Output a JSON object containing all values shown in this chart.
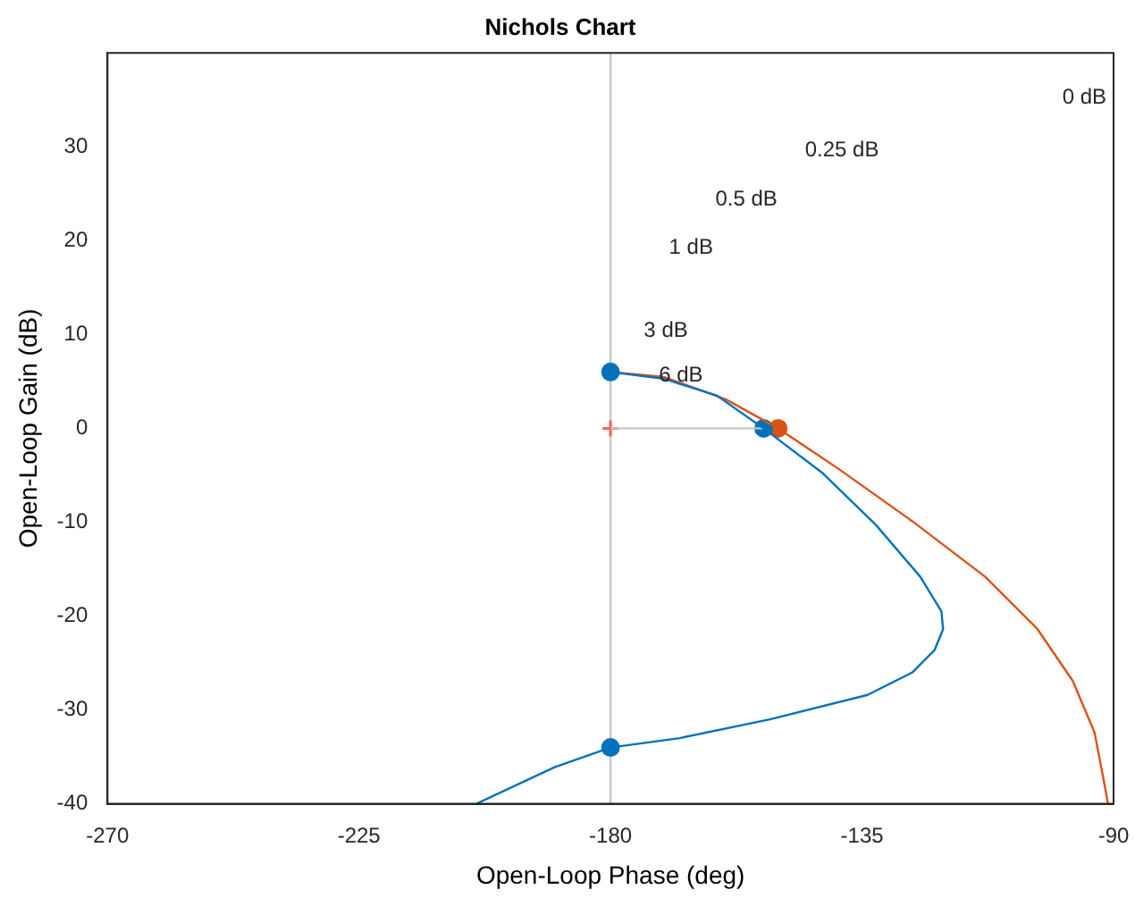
{
  "chart_data": {
    "type": "line",
    "title": "Nichols Chart",
    "xlabel": "Open-Loop Phase (deg)",
    "ylabel": "Open-Loop Gain (dB)",
    "xlim": [
      -270,
      -90
    ],
    "xticks": [
      -270,
      -225,
      -180,
      -135,
      -90
    ],
    "ylim": [
      -40,
      40
    ],
    "yticks": [
      -40,
      -30,
      -20,
      -10,
      0,
      10,
      20,
      30
    ],
    "grid": false,
    "legend": false,
    "line_style": "solid",
    "marker": "none",
    "series": [
      {
        "color": "#0072bd",
        "x": [
          -180,
          -170.6,
          -161,
          -152.6,
          -142,
          -132.5,
          -124.6,
          -120.8,
          -120.5,
          -122,
          -126,
          -134,
          -151.5,
          -167.6,
          -180,
          -190,
          -204
        ],
        "values": [
          6,
          5.3,
          3.5,
          0,
          -4.8,
          -10.3,
          -15.8,
          -19.5,
          -21.4,
          -23.6,
          -26,
          -28.4,
          -31,
          -33,
          -34,
          -36.1,
          -40
        ]
      },
      {
        "color": "#d95319",
        "x": [
          -180,
          -170.6,
          -159.4,
          -150,
          -139,
          -126,
          -113,
          -103.6,
          -97.3,
          -93.4,
          -91.6,
          -91
        ],
        "values": [
          6,
          5.5,
          3.1,
          0,
          -4.4,
          -9.9,
          -15.8,
          -21.4,
          -26.9,
          -32.4,
          -38,
          -40
        ]
      },
      {
        "color": "#c8c8c8",
        "x": [
          -180,
          -152.6
        ],
        "values": [
          0,
          0
        ]
      },
      {
        "type": "scatter",
        "marker": "cross",
        "color": "#ff6060",
        "x": [
          -180
        ],
        "values": [
          0
        ]
      },
      {
        "type": "scatter",
        "marker": "circle",
        "color": "#0072bd",
        "x": [
          -180,
          -152.6,
          -180
        ],
        "values": [
          6,
          0,
          -34
        ]
      },
      {
        "type": "scatter",
        "marker": "circle",
        "color": "#d95319",
        "x": [
          -150
        ],
        "values": [
          0
        ]
      }
    ],
    "ref_lines": [
      {
        "axis": "x",
        "value": -180,
        "color": "#c8c8c8",
        "line_style": "solid"
      }
    ],
    "annotations": [
      "0 dB",
      "0.25 dB",
      "0.5 dB",
      "1 dB",
      "3 dB",
      "6 dB"
    ]
  }
}
